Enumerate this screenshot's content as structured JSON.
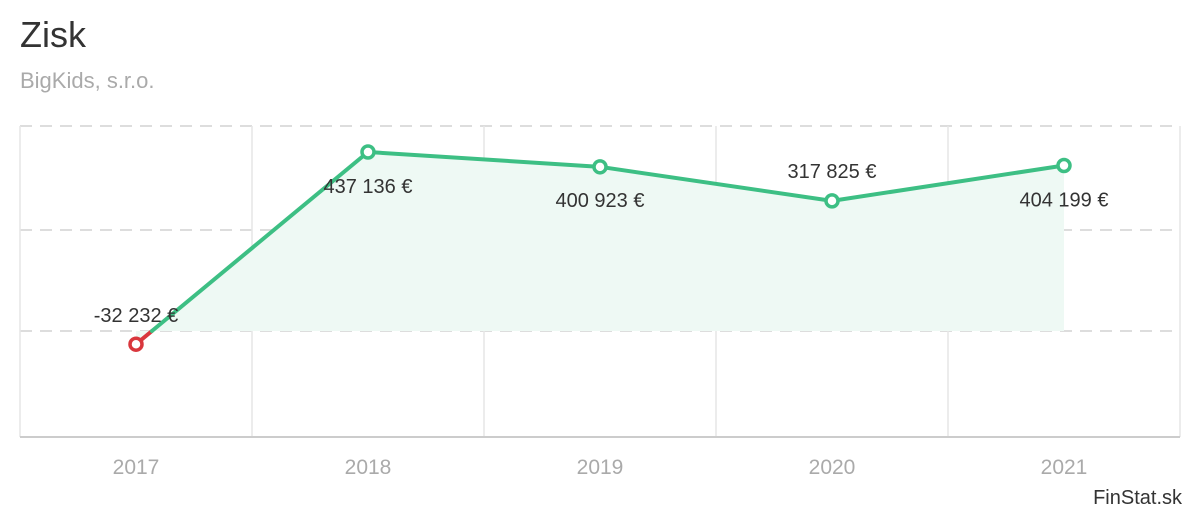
{
  "header": {
    "title": "Zisk",
    "subtitle": "BigKids, s.r.o."
  },
  "credit": "FinStat.sk",
  "chart_data": {
    "type": "area",
    "title": "Zisk",
    "subtitle": "BigKids, s.r.o.",
    "categories": [
      "2017",
      "2018",
      "2019",
      "2020",
      "2021"
    ],
    "series": [
      {
        "values": [
          -32232,
          437136,
          400923,
          317825,
          404199
        ],
        "labels": [
          "-32 232 €",
          "437 136 €",
          "400 923 €",
          "317 825 €",
          "404 199 €"
        ]
      }
    ],
    "grid": true,
    "legend": "none",
    "colors": {
      "line": "#3dbf84",
      "fill": "#eef9f4",
      "negative": "#d9373d",
      "grid": "#dddddd",
      "axis": "#cccccc"
    }
  }
}
